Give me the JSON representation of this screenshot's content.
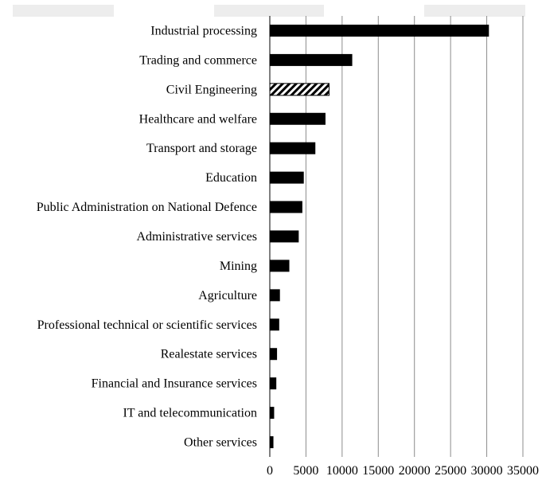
{
  "chart_data": {
    "type": "bar",
    "orientation": "horizontal",
    "categories": [
      "Industrial processing",
      "Trading and commerce",
      "Civil Engineering",
      "Healthcare and welfare",
      "Transport and storage",
      "Education",
      "Public Administration on National Defence",
      "Administrative services",
      "Mining",
      "Agriculture",
      "Professional technical or scientific services",
      "Realestate services",
      "Financial and Insurance services",
      "IT and telecommunication",
      "Other services"
    ],
    "values": [
      30300,
      11400,
      8200,
      7700,
      6300,
      4700,
      4500,
      4000,
      2700,
      1400,
      1300,
      1000,
      900,
      600,
      500
    ],
    "highlighted_category": "Civil Engineering",
    "xlim": [
      0,
      35000
    ],
    "xticks": [
      "0",
      "5000",
      "10000",
      "15000",
      "20000",
      "25000",
      "30000",
      "35000"
    ],
    "grid": "vertical",
    "colors": {
      "bar": "#000000",
      "highlight_pattern": "diagonal-hatch",
      "grid": "#8c8c8c"
    }
  }
}
